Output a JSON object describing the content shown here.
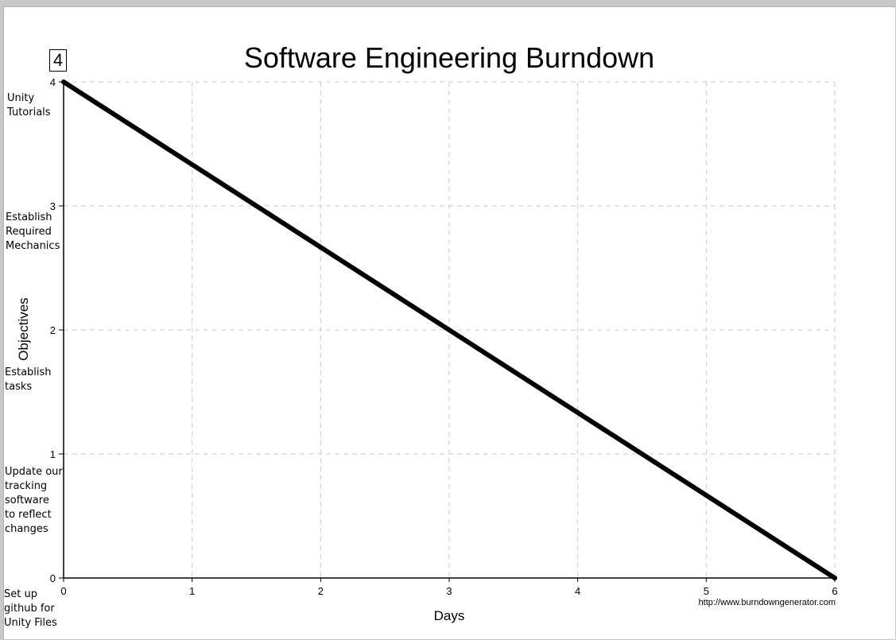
{
  "badge": "4",
  "notes": [
    "Unity\nTutorials",
    "Establish\nRequired\nMechanics",
    "Establish\ntasks",
    "Update our\ntracking\nsoftware\nto reflect\nchanges",
    "Set up\ngithub for\n Unity Files"
  ],
  "credit": "http://www.burndowngenerator.com",
  "colors": {
    "line": "#000000",
    "grid": "#c8c8c8",
    "background": "#ffffff"
  },
  "chart_data": {
    "type": "line",
    "title": "Software Engineering Burndown",
    "xlabel": "Days",
    "ylabel": "Objectives",
    "x": [
      0,
      1,
      2,
      3,
      4,
      5,
      6
    ],
    "series": [
      {
        "values": [
          4,
          3.3333,
          2.6667,
          2,
          1.3333,
          0.6667,
          0
        ]
      }
    ],
    "xlim": [
      0,
      6
    ],
    "ylim": [
      0,
      4
    ],
    "xticks": [
      "0",
      "1",
      "2",
      "3",
      "4",
      "5",
      "6"
    ],
    "yticks": [
      "0",
      "1",
      "2",
      "3",
      "4"
    ],
    "grid": true
  }
}
